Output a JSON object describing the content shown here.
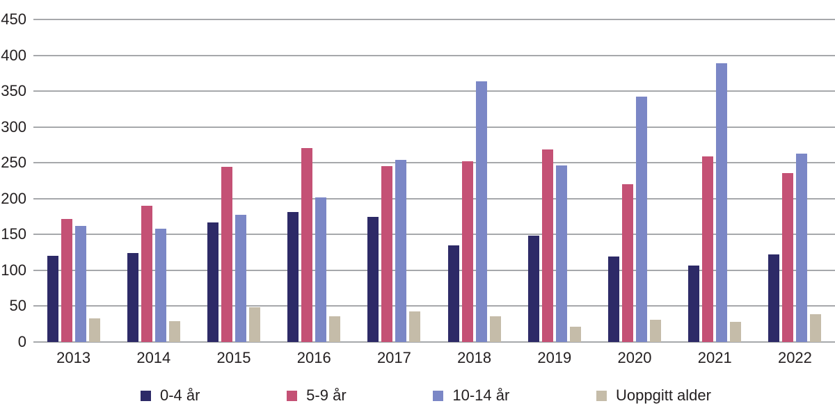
{
  "chart_data": {
    "type": "bar",
    "title": "",
    "xlabel": "",
    "ylabel": "",
    "categories": [
      "2013",
      "2014",
      "2015",
      "2016",
      "2017",
      "2018",
      "2019",
      "2020",
      "2021",
      "2022"
    ],
    "series": [
      {
        "name": "0-4 år",
        "color": "#2d2a67",
        "values": [
          120,
          124,
          167,
          181,
          175,
          135,
          148,
          119,
          107,
          122
        ]
      },
      {
        "name": "5-9 år",
        "color": "#c45175",
        "values": [
          172,
          190,
          244,
          271,
          245,
          252,
          269,
          220,
          259,
          236
        ]
      },
      {
        "name": "10-14 år",
        "color": "#7b87c6",
        "values": [
          162,
          158,
          178,
          202,
          254,
          364,
          246,
          342,
          389,
          263
        ]
      },
      {
        "name": "Uoppgitt alder",
        "color": "#c5bca9",
        "values": [
          33,
          29,
          49,
          36,
          43,
          36,
          21,
          31,
          28,
          39
        ]
      }
    ],
    "ylim": [
      0,
      450
    ],
    "ytick_step": 50,
    "yticks": [
      0,
      50,
      100,
      150,
      200,
      250,
      300,
      350,
      400,
      450
    ],
    "grid": "horizontal-only",
    "gridline_color": "#a6a8ab",
    "text_color": "#231f20",
    "legend_position": "bottom",
    "background_color": "#ffffff"
  }
}
